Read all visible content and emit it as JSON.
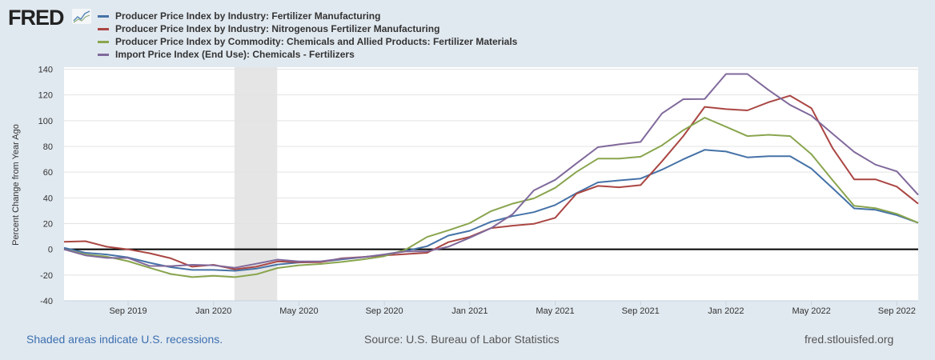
{
  "header": {
    "logo_text": "FRED"
  },
  "footer": {
    "recession_note": "Shaded areas indicate U.S. recessions.",
    "source": "Source: U.S. Bureau of Labor Statistics",
    "site": "fred.stlouisfed.org"
  },
  "chart_data": {
    "type": "line",
    "ylabel": "Percent Change from Year Ago",
    "ylim": [
      -40,
      140
    ],
    "yticks": [
      -40,
      -20,
      0,
      20,
      40,
      60,
      80,
      100,
      120,
      140
    ],
    "x_start": "2019-06",
    "x_end": "2022-10",
    "xtick_labels": [
      {
        "label": "Sep 2019",
        "month_index": 3
      },
      {
        "label": "Jan 2020",
        "month_index": 7
      },
      {
        "label": "May 2020",
        "month_index": 11
      },
      {
        "label": "Sep 2020",
        "month_index": 15
      },
      {
        "label": "Jan 2021",
        "month_index": 19
      },
      {
        "label": "May 2021",
        "month_index": 23
      },
      {
        "label": "Sep 2021",
        "month_index": 27
      },
      {
        "label": "Jan 2022",
        "month_index": 31
      },
      {
        "label": "May 2022",
        "month_index": 35
      },
      {
        "label": "Sep 2022",
        "month_index": 39
      }
    ],
    "recession": {
      "start_month_index": 8,
      "end_month_index": 10
    },
    "legend_placement": "top",
    "series": [
      {
        "name": "Producer Price Index by Industry: Fertilizer Manufacturing",
        "color": "#4572a7",
        "values": [
          1.2,
          -2.7,
          -4,
          -6.3,
          -10.4,
          -13.9,
          -16,
          -16,
          -16.7,
          -15,
          -11.8,
          -10.2,
          -9.8,
          -7.8,
          -6.1,
          -4,
          -1.2,
          2.4,
          10.7,
          14.4,
          21.4,
          25.8,
          28.9,
          34.4,
          43.7,
          52,
          53.6,
          55,
          61.9,
          70,
          77.3,
          76,
          71.5,
          72.4,
          72.4,
          62.7,
          47.4,
          31.8,
          30.7,
          26.6,
          20.6
        ]
      },
      {
        "name": "Producer Price Index by Industry: Nitrogenous Fertilizer Manufacturing",
        "color": "#aa4643",
        "values": [
          5.9,
          6.3,
          2,
          0,
          -3,
          -7,
          -13.5,
          -12,
          -15.5,
          -13.5,
          -9.4,
          -10,
          -10,
          -7,
          -6,
          -4.7,
          -3.7,
          -2.7,
          5.6,
          9.7,
          16.5,
          18.4,
          19.8,
          24.5,
          43.3,
          49.3,
          48.2,
          49.9,
          68.4,
          88,
          110.7,
          109,
          108,
          114.4,
          119.4,
          109.7,
          78.4,
          54.4,
          54.4,
          48.7,
          35.5
        ]
      },
      {
        "name": "Producer Price Index by Commodity: Chemicals and Allied Products: Fertilizer Materials",
        "color": "#89a54e",
        "values": [
          0,
          -4,
          -5.7,
          -9.2,
          -14.3,
          -19.2,
          -21.6,
          -20.6,
          -21.6,
          -19.4,
          -14.5,
          -12.4,
          -11.4,
          -9.8,
          -7.8,
          -5.3,
          -0.2,
          9.6,
          14.8,
          20.4,
          29.7,
          35.5,
          39.6,
          47.8,
          60.2,
          70.5,
          70.5,
          72,
          80.8,
          92.6,
          102.3,
          95.3,
          88,
          89,
          88,
          74,
          53.6,
          33.8,
          32,
          27.6,
          20.6
        ]
      },
      {
        "name": "Import Price Index (End Use): Chemicals - Fertilizers",
        "color": "#80699b",
        "values": [
          0,
          -4.7,
          -6.7,
          -6.7,
          -12.9,
          -13,
          -12,
          -12.4,
          -14.3,
          -11.2,
          -8,
          -9.4,
          -9.4,
          -7.3,
          -6.1,
          -4,
          -1.6,
          -1.6,
          2,
          9,
          16.5,
          27.2,
          45.8,
          54,
          66.8,
          79.4,
          81.6,
          83.5,
          105.6,
          116.7,
          116.9,
          136.3,
          136.3,
          123.7,
          112.2,
          103.9,
          89.7,
          75.7,
          65.8,
          60.6,
          42.3
        ]
      }
    ]
  }
}
